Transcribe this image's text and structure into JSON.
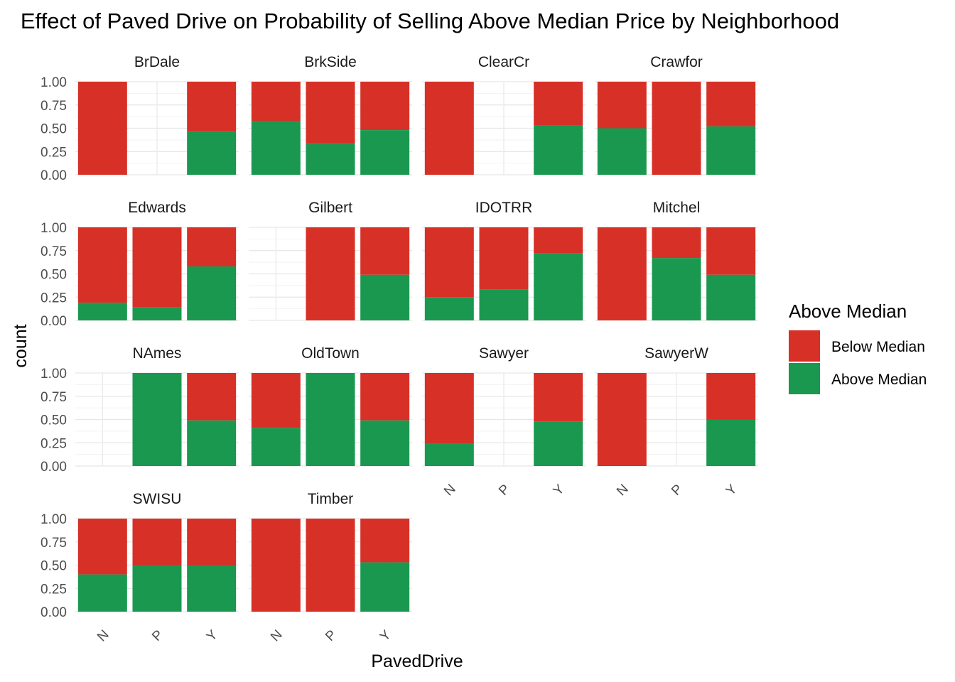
{
  "chart_data": {
    "type": "bar",
    "stacked": true,
    "title": "Effect of Paved Drive on Probability of Selling Above Median Price by Neighborhood",
    "xlabel": "PavedDrive",
    "ylabel": "count",
    "categories": [
      "N",
      "P",
      "Y"
    ],
    "yticks": [
      "0.00",
      "0.25",
      "0.50",
      "0.75",
      "1.00"
    ],
    "ylim": [
      0,
      1
    ],
    "grid": true,
    "legend": {
      "title": "Above Median",
      "position": "right",
      "entries": [
        {
          "label": "Below Median",
          "color": "#d73027"
        },
        {
          "label": "Above Median",
          "color": "#1a9850"
        }
      ]
    },
    "colors": {
      "below": "#d73027",
      "above": "#1a9850"
    },
    "panels": [
      {
        "name": "BrDale",
        "above": [
          0.0,
          null,
          0.46
        ]
      },
      {
        "name": "BrkSide",
        "above": [
          0.58,
          0.33,
          0.48
        ]
      },
      {
        "name": "ClearCr",
        "above": [
          0.0,
          null,
          0.53
        ]
      },
      {
        "name": "Crawfor",
        "above": [
          0.5,
          0.0,
          0.52
        ]
      },
      {
        "name": "Edwards",
        "above": [
          0.19,
          0.14,
          0.58
        ]
      },
      {
        "name": "Gilbert",
        "above": [
          null,
          0.0,
          0.49
        ]
      },
      {
        "name": "IDOTRR",
        "above": [
          0.25,
          0.33,
          0.72
        ]
      },
      {
        "name": "Mitchel",
        "above": [
          0.0,
          0.67,
          0.49
        ]
      },
      {
        "name": "NAmes",
        "above": [
          null,
          1.0,
          0.49
        ]
      },
      {
        "name": "OldTown",
        "above": [
          0.41,
          1.0,
          0.49
        ]
      },
      {
        "name": "Sawyer",
        "above": [
          0.24,
          null,
          0.48
        ]
      },
      {
        "name": "SawyerW",
        "above": [
          0.0,
          null,
          0.5
        ]
      },
      {
        "name": "SWISU",
        "above": [
          0.4,
          0.5,
          0.5
        ]
      },
      {
        "name": "Timber",
        "above": [
          0.0,
          0.0,
          0.53
        ]
      }
    ]
  }
}
